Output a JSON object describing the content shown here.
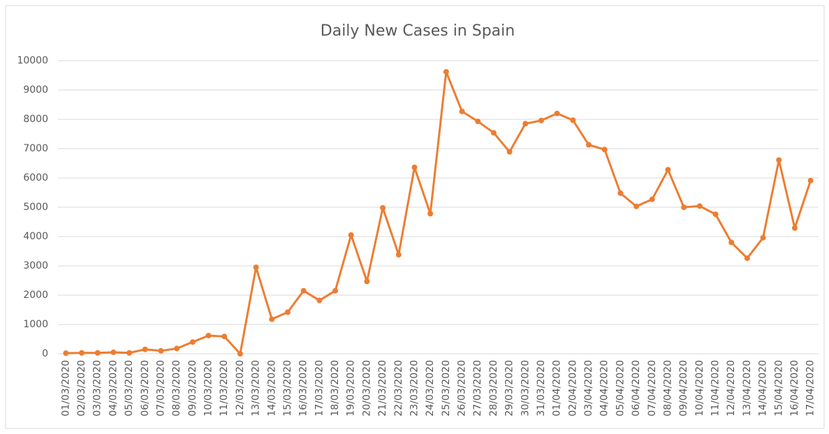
{
  "chart_data": {
    "type": "line",
    "title": "Daily New Cases in Spain",
    "categories": [
      "01/03/2020",
      "02/03/2020",
      "03/03/2020",
      "04/03/2020",
      "05/03/2020",
      "06/03/2020",
      "07/03/2020",
      "08/03/2020",
      "09/03/2020",
      "10/03/2020",
      "11/03/2020",
      "12/03/2020",
      "13/03/2020",
      "14/03/2020",
      "15/03/2020",
      "16/03/2020",
      "17/03/2020",
      "18/03/2020",
      "19/03/2020",
      "20/03/2020",
      "21/03/2020",
      "22/03/2020",
      "23/03/2020",
      "24/03/2020",
      "25/03/2020",
      "26/03/2020",
      "27/03/2020",
      "28/03/2020",
      "29/03/2020",
      "30/03/2020",
      "31/03/2020",
      "01/04/2020",
      "02/04/2020",
      "03/04/2020",
      "04/04/2020",
      "05/04/2020",
      "06/04/2020",
      "07/04/2020",
      "08/04/2020",
      "09/04/2020",
      "10/04/2020",
      "11/04/2020",
      "12/04/2020",
      "13/04/2020",
      "14/04/2020",
      "15/04/2020",
      "16/04/2020",
      "17/04/2020"
    ],
    "values": [
      20,
      30,
      30,
      50,
      30,
      150,
      100,
      180,
      400,
      620,
      590,
      0,
      2950,
      1180,
      1420,
      2150,
      1820,
      2150,
      4050,
      2470,
      4980,
      3380,
      6360,
      4780,
      9620,
      8270,
      7930,
      7540,
      6890,
      7850,
      7960,
      8200,
      7970,
      7130,
      6970,
      5480,
      5030,
      5270,
      6280,
      5000,
      5040,
      4760,
      3800,
      3260,
      3960,
      6610,
      4290,
      5910
    ],
    "color": "#ed7d31",
    "ylim": [
      0,
      10000
    ],
    "yticks": [
      0,
      1000,
      2000,
      3000,
      4000,
      5000,
      6000,
      7000,
      8000,
      9000,
      10000
    ],
    "grid": true
  }
}
